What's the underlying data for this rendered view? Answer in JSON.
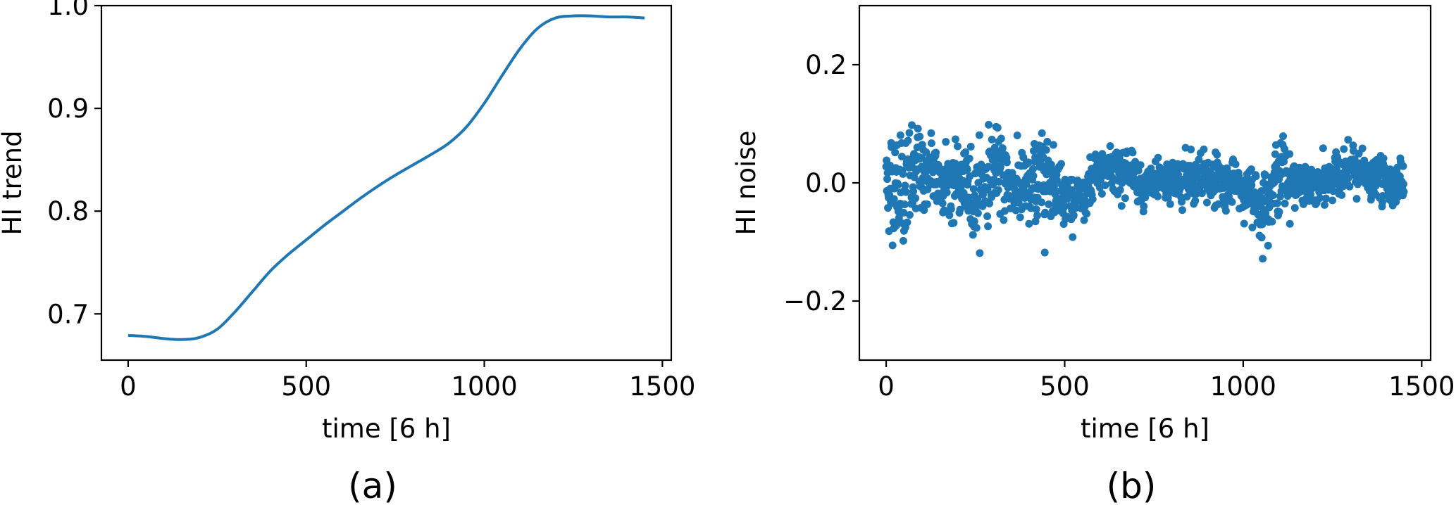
{
  "chart_data": [
    {
      "type": "line",
      "caption": "(a)",
      "xlabel": "time [6 h]",
      "ylabel": "HI trend",
      "xlim": [
        -75,
        1525
      ],
      "ylim": [
        0.655,
        1.0
      ],
      "xticks": [
        0,
        500,
        1000,
        1500
      ],
      "yticks": [
        0.7,
        0.8,
        0.9,
        1.0
      ],
      "xtick_labels": [
        "0",
        "500",
        "1000",
        "1500"
      ],
      "ytick_labels": [
        "0.7",
        "0.8",
        "0.9",
        "1.0"
      ],
      "grid": false,
      "color": "#1f77b4",
      "series": [
        {
          "x": [
            0,
            50,
            100,
            150,
            200,
            250,
            300,
            350,
            400,
            450,
            500,
            550,
            600,
            650,
            700,
            750,
            800,
            850,
            900,
            950,
            1000,
            1050,
            1100,
            1150,
            1200,
            1250,
            1300,
            1350,
            1400,
            1450
          ],
          "values": [
            0.679,
            0.678,
            0.676,
            0.675,
            0.677,
            0.685,
            0.702,
            0.722,
            0.742,
            0.758,
            0.772,
            0.786,
            0.799,
            0.812,
            0.824,
            0.835,
            0.845,
            0.855,
            0.866,
            0.882,
            0.905,
            0.932,
            0.958,
            0.978,
            0.988,
            0.99,
            0.99,
            0.989,
            0.989,
            0.988
          ]
        }
      ]
    },
    {
      "type": "scatter",
      "caption": "(b)",
      "xlabel": "time [6 h]",
      "ylabel": "HI noise",
      "xlim": [
        -75,
        1525
      ],
      "ylim": [
        -0.3,
        0.3
      ],
      "xticks": [
        0,
        500,
        1000,
        1500
      ],
      "yticks": [
        -0.2,
        0.0,
        0.2
      ],
      "xtick_labels": [
        "0",
        "500",
        "1000",
        "1500"
      ],
      "ytick_labels": [
        "−0.2",
        "0.0",
        "0.2"
      ],
      "grid": false,
      "color": "#1f77b4",
      "n_points": 1450,
      "x_range": [
        0,
        1450
      ],
      "envelope": {
        "x": [
          0,
          50,
          100,
          150,
          200,
          250,
          300,
          350,
          400,
          450,
          500,
          550,
          600,
          650,
          700,
          750,
          800,
          850,
          900,
          950,
          1000,
          1050,
          1100,
          1150,
          1200,
          1250,
          1300,
          1350,
          1400,
          1450
        ],
        "center": [
          0.0,
          -0.01,
          0.02,
          0.01,
          0.0,
          -0.02,
          0.03,
          0.0,
          -0.02,
          0.02,
          -0.02,
          -0.03,
          0.02,
          0.03,
          0.01,
          -0.01,
          0.0,
          0.0,
          0.01,
          0.0,
          -0.01,
          -0.04,
          0.02,
          0.0,
          -0.01,
          0.01,
          0.02,
          0.01,
          0.0,
          0.0
        ],
        "spread": [
          0.06,
          0.08,
          0.06,
          0.05,
          0.05,
          0.06,
          0.05,
          0.05,
          0.05,
          0.06,
          0.03,
          0.03,
          0.04,
          0.04,
          0.03,
          0.03,
          0.03,
          0.04,
          0.04,
          0.03,
          0.03,
          0.05,
          0.05,
          0.03,
          0.03,
          0.03,
          0.03,
          0.03,
          0.03,
          0.03
        ]
      }
    }
  ]
}
